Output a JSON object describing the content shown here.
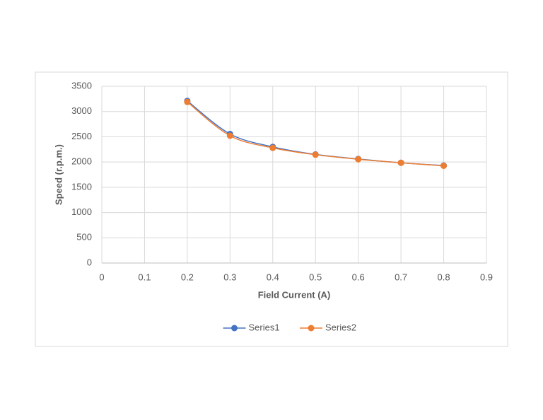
{
  "chart_data": {
    "type": "scatter",
    "x_label": "Field Current (A)",
    "y_label": "Speed (r.p.m.)",
    "x": [
      0.2,
      0.3,
      0.4,
      0.5,
      0.6,
      0.7,
      0.8
    ],
    "series": [
      {
        "name": "Series1",
        "color": "#4472c4",
        "values": [
          3210,
          2555,
          2300,
          2150,
          2060,
          1985,
          1930
        ]
      },
      {
        "name": "Series2",
        "color": "#ed7d31",
        "values": [
          3190,
          2520,
          2280,
          2145,
          2055,
          1985,
          1925
        ]
      }
    ],
    "xlim": [
      0,
      0.9
    ],
    "xticks": [
      0,
      0.1,
      0.2,
      0.3,
      0.4,
      0.5,
      0.6,
      0.7,
      0.8,
      0.9
    ],
    "ylim": [
      0,
      3500
    ],
    "yticks": [
      0,
      500,
      1000,
      1500,
      2000,
      2500,
      3000,
      3500
    ],
    "grid": true,
    "smooth": true,
    "legend": "bottom"
  }
}
